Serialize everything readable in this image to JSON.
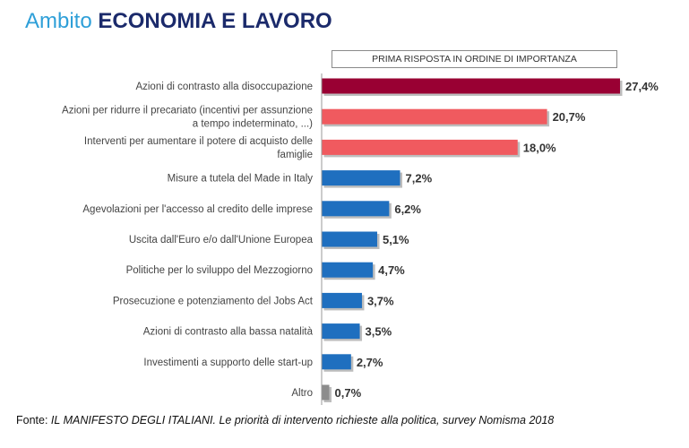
{
  "header": {
    "title_prefix": "Ambito",
    "title_main": "ECONOMIA E LAVORO"
  },
  "legend": {
    "label": "PRIMA RISPOSTA IN ORDINE DI IMPORTANZA"
  },
  "source": {
    "label": "Fonte:",
    "text": "IL MANIFESTO DEGLI ITALIANI. Le priorità di intervento richieste alla politica, survey Nomisma 2018"
  },
  "colors": {
    "top": "#990033",
    "high": "#f05a5f",
    "mid": "#1f6fbf",
    "other": "#8c8c8c"
  },
  "chart_data": {
    "type": "bar",
    "orientation": "horizontal",
    "title": "Ambito ECONOMIA E LAVORO",
    "xlabel": "",
    "ylabel": "",
    "xlim": [
      0,
      27.4
    ],
    "grid": false,
    "legend": "top",
    "categories": [
      [
        "Azioni di contrasto alla disoccupazione"
      ],
      [
        "Azioni per ridurre il precariato (incentivi per assunzione",
        "a tempo indeterminato, ...)"
      ],
      [
        "Interventi per aumentare il potere di acquisto delle",
        "famiglie"
      ],
      [
        "Misure a tutela del Made in Italy"
      ],
      [
        "Agevolazioni per l'accesso al credito delle imprese"
      ],
      [
        "Uscita dall'Euro e/o dall'Unione Europea"
      ],
      [
        "Politiche per lo sviluppo del Mezzogiorno"
      ],
      [
        "Prosecuzione e potenziamento del Jobs Act"
      ],
      [
        "Azioni di contrasto alla bassa natalità"
      ],
      [
        "Investimenti a supporto delle start-up"
      ],
      [
        "Altro"
      ]
    ],
    "values": [
      27.4,
      20.7,
      18.0,
      7.2,
      6.2,
      5.1,
      4.7,
      3.7,
      3.5,
      2.7,
      0.7
    ],
    "value_labels": [
      "27,4%",
      "20,7%",
      "18,0%",
      "7,2%",
      "6,2%",
      "5,1%",
      "4,7%",
      "3,7%",
      "3,5%",
      "2,7%",
      "0,7%"
    ],
    "bar_color_keys": [
      "top",
      "high",
      "high",
      "mid",
      "mid",
      "mid",
      "mid",
      "mid",
      "mid",
      "mid",
      "other"
    ]
  }
}
